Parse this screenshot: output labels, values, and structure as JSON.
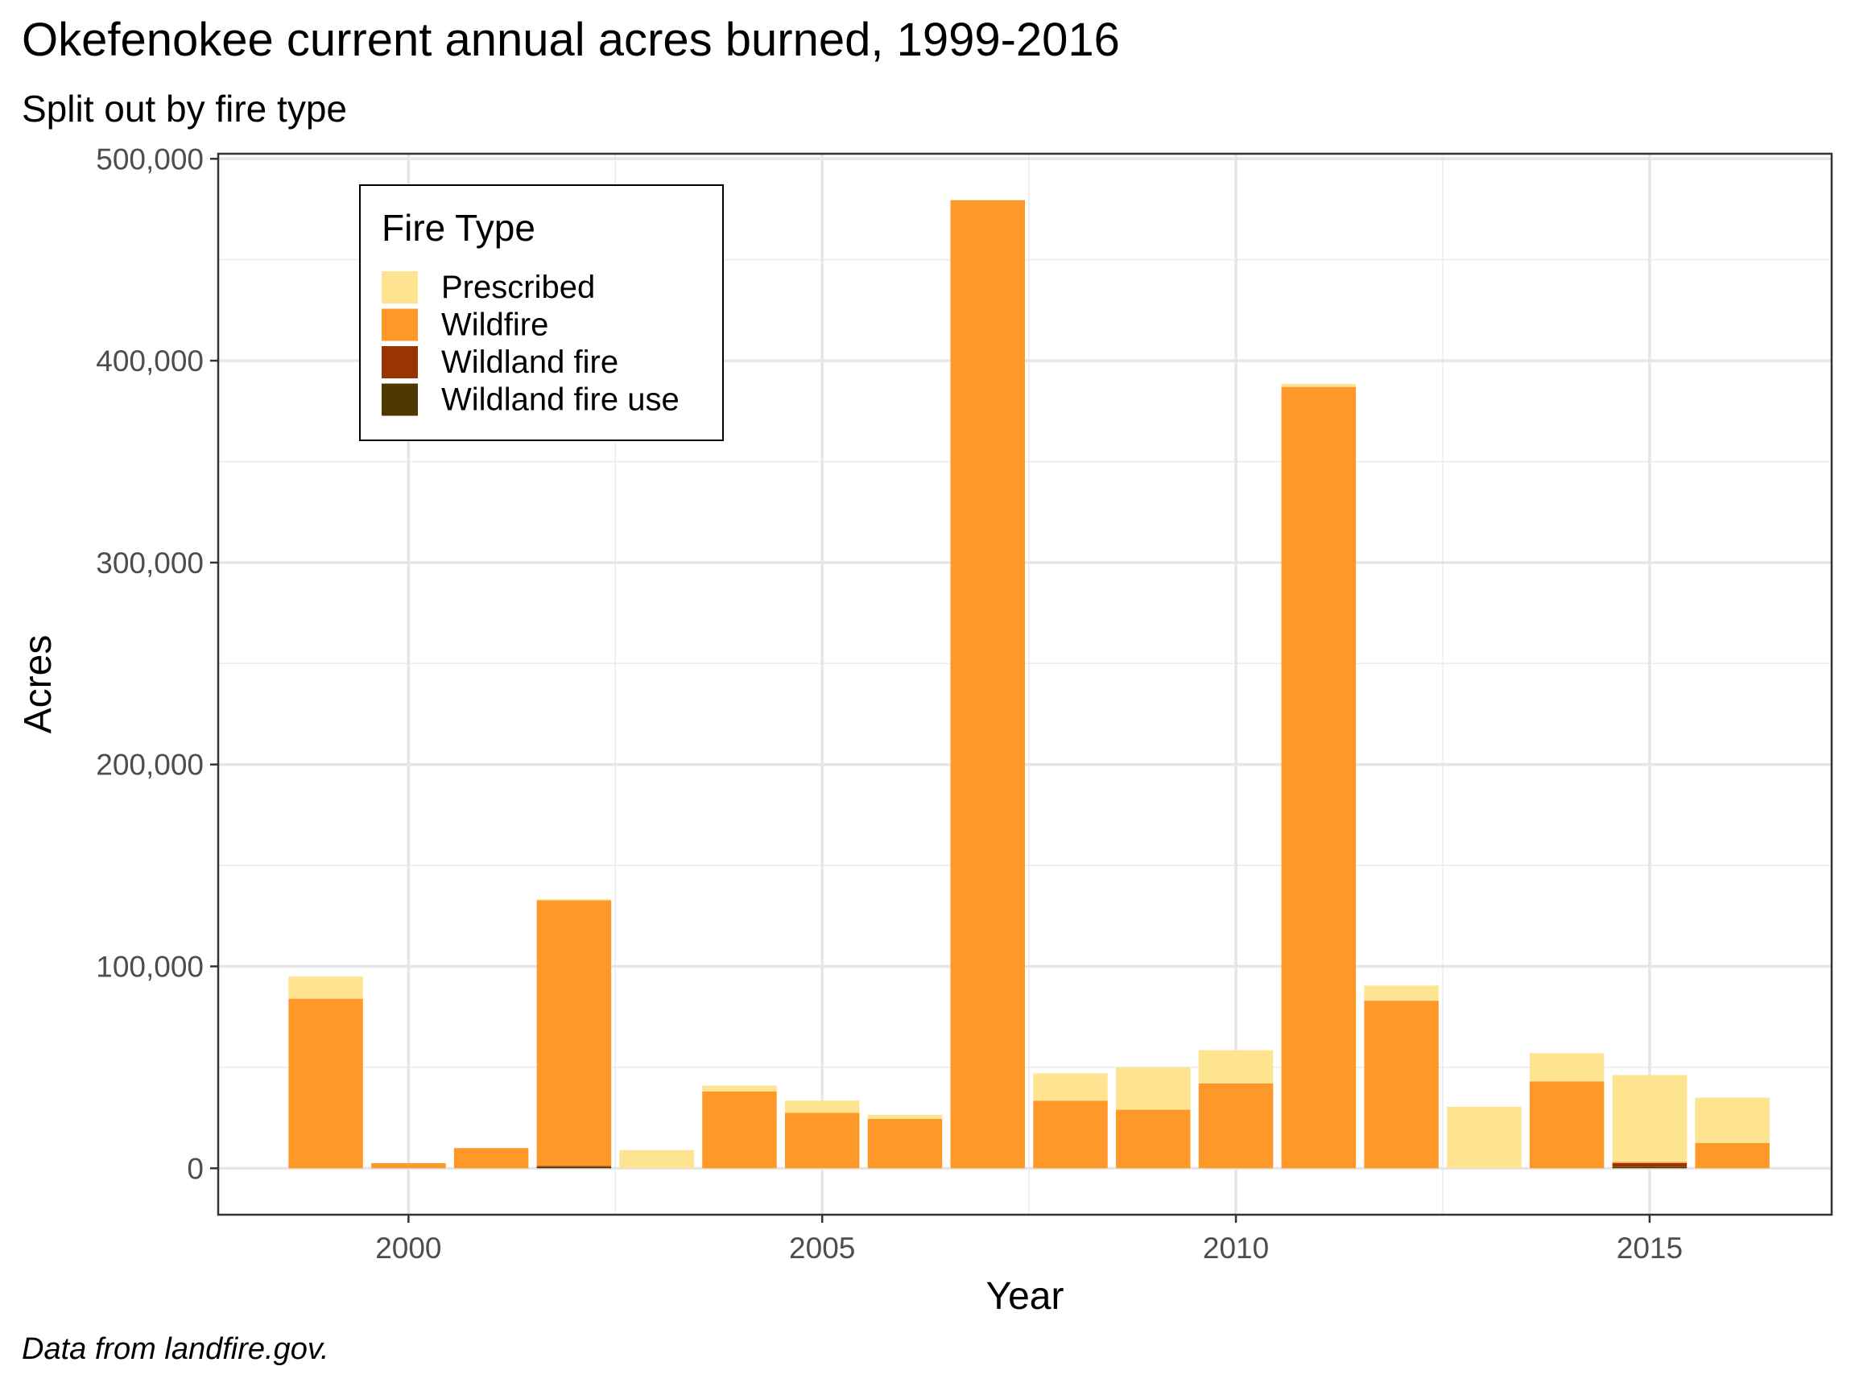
{
  "title": "Okefenokee current annual acres burned, 1999-2016",
  "subtitle": "Split out by fire type",
  "caption": "Data from landfire.gov.",
  "chart_data": {
    "type": "bar",
    "stacked": true,
    "xlabel": "Year",
    "ylabel": "Acres",
    "xlim": [
      1997.7,
      1999.3,
      2000,
      2005,
      2010,
      2015,
      2017.2
    ],
    "x_ticks": [
      2000,
      2005,
      2010,
      2015
    ],
    "x_tick_labels": [
      "2000",
      "2005",
      "2010",
      "2015"
    ],
    "ylim": [
      -23000,
      502500
    ],
    "y_ticks": [
      0,
      100000,
      200000,
      300000,
      400000,
      500000
    ],
    "y_tick_labels": [
      "0",
      "100,000",
      "200,000",
      "300,000",
      "400,000",
      "500,000"
    ],
    "grid": true,
    "legend_title": "Fire Type",
    "legend_position": "top-left",
    "categories": [
      1999,
      2000,
      2001,
      2002,
      2003,
      2004,
      2005,
      2006,
      2007,
      2008,
      2009,
      2010,
      2011,
      2012,
      2013,
      2014,
      2015,
      2016
    ],
    "series": [
      {
        "name": "Wildland fire use",
        "color": "#4d3800",
        "values": [
          0,
          0,
          0,
          600,
          0,
          0,
          0,
          0,
          0,
          0,
          0,
          0,
          0,
          0,
          0,
          0,
          600,
          0
        ]
      },
      {
        "name": "Wildland fire",
        "color": "#993404",
        "values": [
          0,
          0,
          0,
          600,
          0,
          0,
          0,
          0,
          0,
          0,
          0,
          0,
          0,
          0,
          0,
          0,
          2000,
          0
        ]
      },
      {
        "name": "Wildfire",
        "color": "#fe9929",
        "values": [
          84000,
          2500,
          10000,
          131500,
          0,
          38000,
          27500,
          24500,
          479500,
          33500,
          29000,
          42000,
          387000,
          83000,
          0,
          43000,
          600,
          12500
        ]
      },
      {
        "name": "Prescribed",
        "color": "#fee391",
        "values": [
          11000,
          0,
          0,
          500,
          9000,
          3000,
          6000,
          2000,
          0,
          13500,
          21000,
          16500,
          1500,
          7500,
          30500,
          14000,
          43000,
          22500
        ]
      }
    ],
    "legend_order": [
      "Prescribed",
      "Wildfire",
      "Wildland fire",
      "Wildland fire use"
    ]
  }
}
